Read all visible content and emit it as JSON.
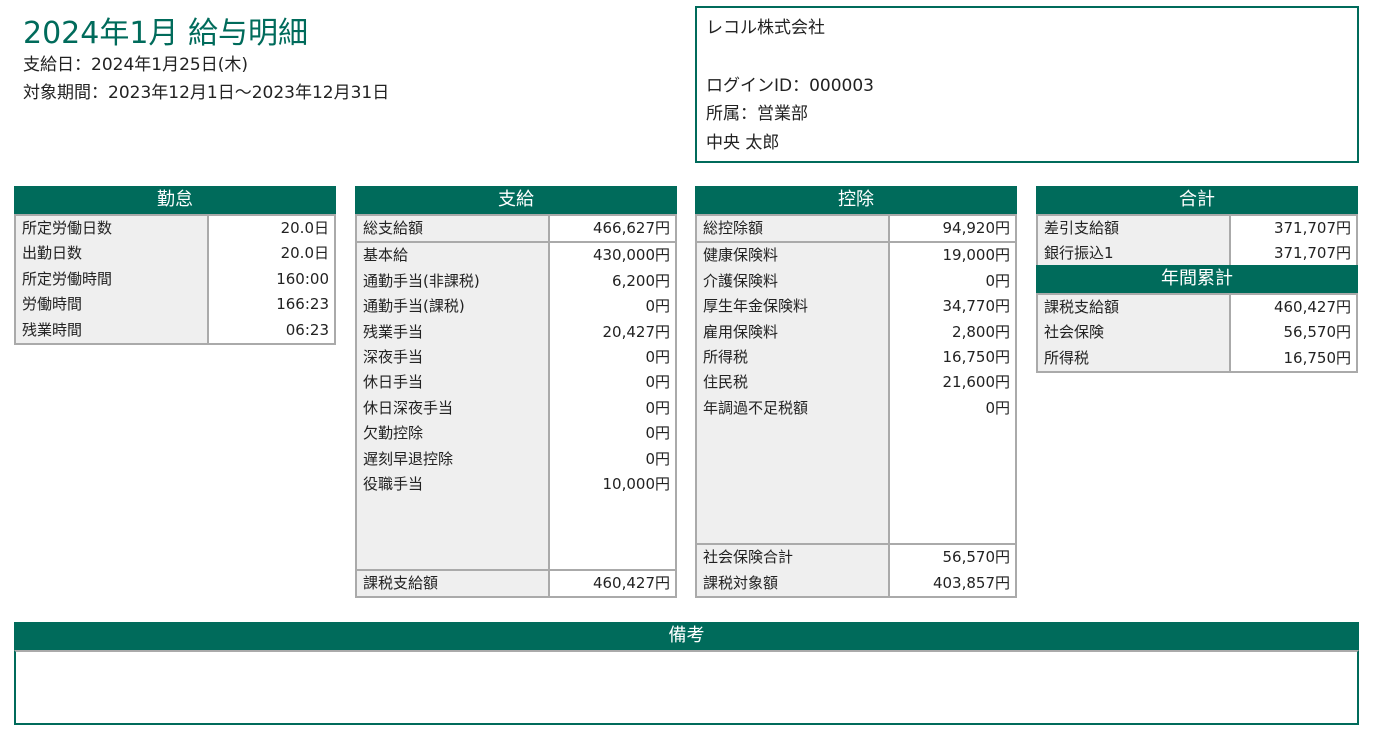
{
  "header": {
    "title": "2024年1月 給与明細",
    "pay_date": "支給日：2024年1月25日(木)",
    "period": "対象期間：2023年12月1日〜2023年12月31日"
  },
  "company": {
    "name": "レコル株式会社",
    "login_id": "ログインID：000003",
    "department": "所属：営業部",
    "employee": "中央 太郎"
  },
  "colors": {
    "accent": "#006b5b",
    "border": "#aaaaaa",
    "label_bg": "#efefef"
  },
  "sections": {
    "attendance": {
      "title": "勤怠",
      "groups": [
        [
          {
            "label": "所定労働日数",
            "value": "20.0日"
          },
          {
            "label": "出勤日数",
            "value": "20.0日"
          },
          {
            "label": "所定労働時間",
            "value": "160:00"
          },
          {
            "label": "労働時間",
            "value": "166:23"
          },
          {
            "label": "残業時間",
            "value": "06:23"
          }
        ]
      ]
    },
    "payment": {
      "title": "支給",
      "groups": [
        [
          {
            "label": "総支給額",
            "value": "466,627円"
          }
        ],
        [
          {
            "label": "基本給",
            "value": "430,000円"
          },
          {
            "label": "通勤手当(非課税)",
            "value": "6,200円"
          },
          {
            "label": "通勤手当(課税)",
            "value": "0円"
          },
          {
            "label": "残業手当",
            "value": "20,427円"
          },
          {
            "label": "深夜手当",
            "value": "0円"
          },
          {
            "label": "休日手当",
            "value": "0円"
          },
          {
            "label": "休日深夜手当",
            "value": "0円"
          },
          {
            "label": "欠勤控除",
            "value": "0円"
          },
          {
            "label": "遅刻早退控除",
            "value": "0円"
          },
          {
            "label": "役職手当",
            "value": "10,000円"
          }
        ],
        [
          {
            "label": "課税支給額",
            "value": "460,427円"
          }
        ]
      ]
    },
    "deduction": {
      "title": "控除",
      "groups": [
        [
          {
            "label": "総控除額",
            "value": "94,920円"
          }
        ],
        [
          {
            "label": "健康保険料",
            "value": "19,000円"
          },
          {
            "label": "介護保険料",
            "value": "0円"
          },
          {
            "label": "厚生年金保険料",
            "value": "34,770円"
          },
          {
            "label": "雇用保険料",
            "value": "2,800円"
          },
          {
            "label": "所得税",
            "value": "16,750円"
          },
          {
            "label": "住民税",
            "value": "21,600円"
          },
          {
            "label": "年調過不足税額",
            "value": "0円"
          }
        ],
        [
          {
            "label": "社会保険合計",
            "value": "56,570円"
          },
          {
            "label": "課税対象額",
            "value": "403,857円"
          }
        ]
      ]
    },
    "total": {
      "title": "合計",
      "groups": [
        [
          {
            "label": "差引支給額",
            "value": "371,707円"
          },
          {
            "label": "銀行振込1",
            "value": "371,707円"
          }
        ]
      ]
    },
    "annual": {
      "title": "年間累計",
      "groups": [
        [
          {
            "label": "課税支給額",
            "value": "460,427円"
          },
          {
            "label": "社会保険",
            "value": "56,570円"
          },
          {
            "label": "所得税",
            "value": "16,750円"
          }
        ]
      ]
    }
  },
  "remarks": {
    "title": "備考",
    "text": ""
  }
}
